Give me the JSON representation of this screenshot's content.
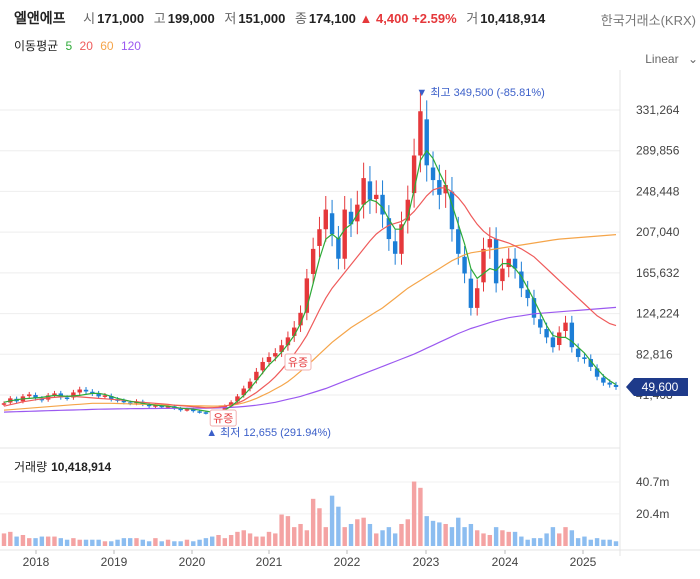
{
  "header": {
    "name": "엘앤에프",
    "open_label": "시",
    "open": "171,000",
    "high_label": "고",
    "high": "199,000",
    "low_label": "저",
    "low": "151,000",
    "close_label": "종",
    "close": "174,100",
    "change": "▲ 4,400",
    "change_pct": "+2.59%",
    "volume_label": "거",
    "volume": "10,418,914",
    "exchange": "한국거래소(KRX)"
  },
  "ma_legend": {
    "title": "이동평균",
    "items": [
      {
        "label": "5",
        "color": "#2eaa38"
      },
      {
        "label": "20",
        "color": "#ef5b5b"
      },
      {
        "label": "60",
        "color": "#f5a54a"
      },
      {
        "label": "120",
        "color": "#9b59f0"
      }
    ]
  },
  "scale_mode": "Linear",
  "volume_panel": {
    "title": "거래량",
    "value": "10,418,914"
  },
  "chart_data": {
    "type": "candlestick",
    "y_ticks": [
      "331,264",
      "289,856",
      "248,448",
      "207,040",
      "165,632",
      "124,224",
      "82,816",
      "41,408"
    ],
    "y_tick_values": [
      331264,
      289856,
      248448,
      207040,
      165632,
      124224,
      82816,
      41408
    ],
    "x_ticks": [
      "2018",
      "2019",
      "2020",
      "2021",
      "2022",
      "2023",
      "2024",
      "2025"
    ],
    "last_price_label": "49,600",
    "last_price": 49600,
    "high_annotation": "최고 349,500 (-85.81%)",
    "high_value": 349500,
    "low_annotation": "최저 12,655 (291.94%)",
    "low_value": 12655,
    "events": [
      "유증",
      "유증"
    ],
    "volume_ticks": [
      "40.7m",
      "20.4m"
    ],
    "volume_tick_values": [
      40.7,
      20.4
    ],
    "colors": {
      "up": "#e5383b",
      "down": "#1c7ed6",
      "vol_up": "#f4a3a3",
      "vol_down": "#8cbdf0"
    },
    "closes": [
      33000,
      38000,
      35000,
      40000,
      42000,
      38000,
      36000,
      41000,
      43000,
      39000,
      38000,
      44000,
      47000,
      45000,
      43000,
      40000,
      41000,
      37000,
      36000,
      34000,
      33000,
      35000,
      32000,
      30000,
      31000,
      29000,
      30000,
      28000,
      26000,
      27000,
      25000,
      24000,
      23000,
      22000,
      24000,
      30000,
      34000,
      40000,
      48000,
      55000,
      65000,
      75000,
      80000,
      84000,
      92000,
      100000,
      110000,
      125000,
      160000,
      190000,
      210000,
      230000,
      205000,
      180000,
      230000,
      215000,
      235000,
      262000,
      240000,
      245000,
      225000,
      200000,
      185000,
      215000,
      240000,
      285000,
      330000,
      275000,
      260000,
      245000,
      255000,
      210000,
      185000,
      165000,
      130000,
      150000,
      190000,
      200000,
      155000,
      170000,
      180000,
      170000,
      150000,
      140000,
      120000,
      110000,
      100000,
      90000,
      105000,
      115000,
      90000,
      80000,
      78000,
      70000,
      60000,
      54000,
      52000,
      49600
    ],
    "volumes": [
      8,
      9,
      6,
      7,
      5,
      5,
      6,
      6,
      6,
      5,
      4,
      5,
      4,
      4,
      4,
      4,
      3,
      3,
      4,
      5,
      5,
      5,
      4,
      3,
      5,
      3,
      4,
      3,
      3,
      4,
      3,
      4,
      5,
      6,
      7,
      5,
      7,
      9,
      10,
      8,
      6,
      6,
      9,
      8,
      20,
      19,
      12,
      14,
      10,
      30,
      24,
      12,
      32,
      25,
      12,
      14,
      17,
      18,
      14,
      8,
      10,
      12,
      8,
      14,
      17,
      41,
      37,
      19,
      16,
      15,
      14,
      12,
      18,
      12,
      14,
      10,
      8,
      7,
      12,
      10,
      9,
      9,
      6,
      4,
      5,
      5,
      8,
      12,
      8,
      12,
      10,
      5,
      6,
      4,
      5,
      4,
      4,
      3
    ],
    "ma5": [
      34000,
      35500,
      36500,
      37500,
      38000,
      38500,
      39000,
      40000,
      41000,
      40500,
      40000,
      40500,
      41000,
      42000,
      43000,
      43000,
      42000,
      40000,
      38000,
      36500,
      35000,
      34000,
      33000,
      32000,
      31000,
      30500,
      30000,
      29000,
      28000,
      27500,
      27000,
      26000,
      25000,
      24000,
      24000,
      26000,
      30000,
      35000,
      41000,
      48000,
      56000,
      64000,
      72000,
      78000,
      85000,
      93000,
      102000,
      114000,
      130000,
      155000,
      180000,
      200000,
      205000,
      200000,
      210000,
      215000,
      225000,
      235000,
      240000,
      238000,
      232000,
      220000,
      210000,
      210000,
      222000,
      250000,
      280000,
      290000,
      282000,
      268000,
      255000,
      235000,
      215000,
      195000,
      170000,
      160000,
      165000,
      170000,
      168000,
      175000,
      175000,
      170000,
      162000,
      150000,
      138000,
      125000,
      112000,
      102000,
      100000,
      100000,
      96000,
      90000,
      84000,
      76000,
      68000,
      61000,
      56000,
      52000
    ],
    "ma20": [
      30000,
      31500,
      33000,
      34500,
      35500,
      36500,
      37500,
      38500,
      39000,
      39500,
      40000,
      40000,
      39500,
      39000,
      38500,
      38000,
      37500,
      37000,
      36500,
      36000,
      35000,
      34500,
      34000,
      33500,
      33000,
      32500,
      32000,
      31000,
      30500,
      30000,
      29500,
      29000,
      28500,
      28500,
      29000,
      30000,
      31500,
      33000,
      36000,
      40000,
      44000,
      49000,
      54000,
      60000,
      67000,
      75000,
      83000,
      92000,
      102000,
      115000,
      128000,
      140000,
      150000,
      158000,
      166000,
      174000,
      182000,
      190000,
      198000,
      205000,
      210000,
      214000,
      216000,
      218000,
      222000,
      228000,
      236000,
      244000,
      250000,
      252000,
      252000,
      248000,
      242000,
      234000,
      224000,
      215000,
      208000,
      203000,
      200000,
      198000,
      196000,
      193000,
      190000,
      186000,
      182000,
      176000,
      170000,
      164000,
      158000,
      152000,
      146000,
      140000,
      134000,
      128000,
      122000,
      118000,
      114000,
      112000
    ],
    "ma60": [
      26000,
      26500,
      27000,
      27500,
      28000,
      28500,
      29000,
      29500,
      30000,
      30500,
      31000,
      31500,
      32000,
      32500,
      33000,
      33000,
      33000,
      33000,
      32800,
      32600,
      32400,
      32200,
      32000,
      31800,
      31600,
      31400,
      31200,
      31000,
      30800,
      30600,
      30400,
      30300,
      30200,
      30100,
      30200,
      30500,
      31000,
      32000,
      33500,
      35500,
      38000,
      41000,
      44000,
      47500,
      51000,
      55000,
      60000,
      65500,
      71000,
      77000,
      83000,
      89000,
      95000,
      100000,
      105000,
      110000,
      114000,
      118000,
      122000,
      126000,
      130000,
      135000,
      140000,
      145000,
      150000,
      154000,
      158000,
      162000,
      166000,
      170000,
      174000,
      178000,
      181000,
      184000,
      186000,
      187000,
      188000,
      189000,
      190000,
      191000,
      192000,
      193000,
      194000,
      195000,
      196000,
      197000,
      198000,
      199000,
      200000,
      200500,
      201000,
      201500,
      202000,
      202500,
      203000,
      203500,
      204000,
      204500
    ],
    "ma120": [
      24000,
      24200,
      24400,
      24600,
      24800,
      25000,
      25200,
      25400,
      25600,
      25800,
      26000,
      26200,
      26400,
      26600,
      26800,
      27000,
      27100,
      27200,
      27300,
      27400,
      27500,
      27550,
      27600,
      27650,
      27700,
      27750,
      27800,
      27850,
      27900,
      27950,
      28000,
      28050,
      28100,
      28200,
      28300,
      28500,
      28800,
      29200,
      29700,
      30300,
      31000,
      32000,
      33000,
      34000,
      35500,
      37000,
      38500,
      40000,
      42000,
      44000,
      46000,
      48000,
      50500,
      53000,
      55500,
      58000,
      60500,
      63000,
      65500,
      68000,
      70500,
      73000,
      75500,
      78000,
      80500,
      83000,
      86000,
      89000,
      92000,
      95000,
      98000,
      101000,
      104000,
      106500,
      109000,
      111000,
      113000,
      115000,
      117000,
      118500,
      120000,
      121000,
      122000,
      123000,
      124000,
      124500,
      125000,
      125500,
      126000,
      126500,
      127000,
      127500,
      128000,
      128500,
      129000,
      129500,
      130000,
      130500
    ]
  }
}
